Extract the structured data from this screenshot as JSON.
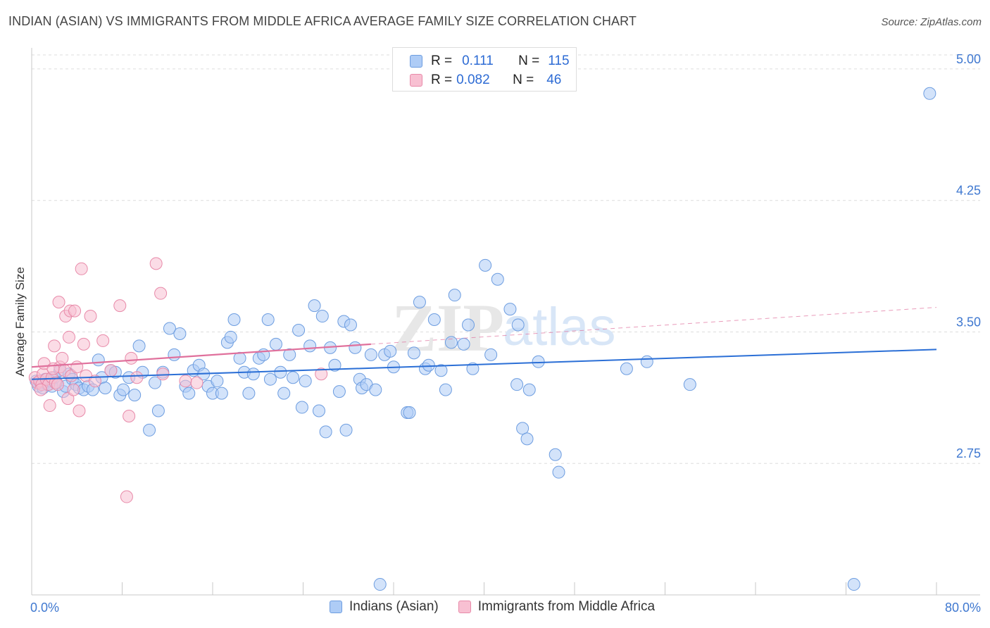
{
  "header": {
    "title": "INDIAN (ASIAN) VS IMMIGRANTS FROM MIDDLE AFRICA AVERAGE FAMILY SIZE CORRELATION CHART",
    "source": "Source: ZipAtlas.com"
  },
  "watermark": {
    "zip": "ZIP",
    "atlas": "atlas"
  },
  "stat_legend": {
    "rows": [
      {
        "r_label": "R =",
        "r_value": "0.111",
        "n_label": "N =",
        "n_value": "115"
      },
      {
        "r_label": "R =",
        "r_value": "0.082",
        "n_label": "N =",
        "n_value": "46"
      }
    ]
  },
  "bottom_legend": {
    "items": [
      "Indians (Asian)",
      "Immigrants from Middle Africa"
    ]
  },
  "chart_data": {
    "type": "scatter",
    "title": "INDIAN (ASIAN) VS IMMIGRANTS FROM MIDDLE AFRICA AVERAGE FAMILY SIZE CORRELATION CHART",
    "xlabel": "",
    "ylabel": "Average Family Size",
    "xlim": [
      0,
      80
    ],
    "ylim": [
      2.0,
      5.08
    ],
    "x_tick_labels": [
      "0.0%",
      "80.0%"
    ],
    "y_ticks": [
      2.75,
      3.5,
      4.25,
      5.0
    ],
    "y_tick_labels": [
      "2.75",
      "3.50",
      "4.25",
      "5.00"
    ],
    "grid": "horizontal dashed",
    "legend_position": "top-center",
    "colors": {
      "blue_fill": "#aeccf6",
      "blue_stroke": "#6d9de0",
      "blue_line": "#2b6fd6",
      "pink_fill": "#f8c0d2",
      "pink_stroke": "#e88aa9",
      "pink_line": "#e0709c",
      "axis_text": "#3f78d0"
    },
    "series": [
      {
        "name": "Indians (Asian)",
        "color": "#aeccf6",
        "r": 0.111,
        "n": 115,
        "trend": {
          "x0": 0,
          "y0": 3.23,
          "x1": 80,
          "y1": 3.4,
          "style": "solid"
        },
        "points": [
          [
            0.4,
            3.22
          ],
          [
            0.6,
            3.19
          ],
          [
            0.8,
            3.21
          ],
          [
            1.0,
            3.18
          ],
          [
            1.2,
            3.23
          ],
          [
            1.4,
            3.2
          ],
          [
            1.6,
            3.22
          ],
          [
            1.8,
            3.19
          ],
          [
            2.0,
            3.24
          ],
          [
            2.2,
            3.21
          ],
          [
            2.5,
            3.28
          ],
          [
            2.8,
            3.16
          ],
          [
            3.0,
            3.19
          ],
          [
            3.3,
            3.26
          ],
          [
            3.6,
            3.23
          ],
          [
            3.9,
            3.2
          ],
          [
            4.2,
            3.18
          ],
          [
            4.6,
            3.17
          ],
          [
            5.0,
            3.19
          ],
          [
            5.4,
            3.17
          ],
          [
            5.9,
            3.34
          ],
          [
            6.2,
            3.24
          ],
          [
            6.5,
            3.18
          ],
          [
            7.0,
            3.28
          ],
          [
            7.4,
            3.27
          ],
          [
            7.8,
            3.14
          ],
          [
            8.1,
            3.17
          ],
          [
            8.6,
            3.24
          ],
          [
            9.1,
            3.14
          ],
          [
            9.5,
            3.42
          ],
          [
            9.8,
            3.27
          ],
          [
            10.4,
            2.94
          ],
          [
            10.9,
            3.21
          ],
          [
            11.2,
            3.05
          ],
          [
            11.6,
            3.27
          ],
          [
            12.2,
            3.52
          ],
          [
            12.6,
            3.37
          ],
          [
            13.1,
            3.49
          ],
          [
            13.6,
            3.19
          ],
          [
            13.9,
            3.15
          ],
          [
            14.3,
            3.28
          ],
          [
            14.8,
            3.31
          ],
          [
            15.2,
            3.26
          ],
          [
            15.6,
            3.19
          ],
          [
            16.0,
            3.15
          ],
          [
            16.4,
            3.22
          ],
          [
            16.8,
            3.15
          ],
          [
            17.3,
            3.44
          ],
          [
            17.6,
            3.47
          ],
          [
            17.9,
            3.57
          ],
          [
            18.4,
            3.35
          ],
          [
            18.8,
            3.27
          ],
          [
            19.2,
            3.15
          ],
          [
            19.6,
            3.26
          ],
          [
            20.1,
            3.35
          ],
          [
            20.5,
            3.37
          ],
          [
            20.9,
            3.57
          ],
          [
            21.1,
            3.23
          ],
          [
            21.6,
            3.43
          ],
          [
            22.0,
            3.27
          ],
          [
            22.3,
            3.15
          ],
          [
            22.8,
            3.37
          ],
          [
            23.1,
            3.24
          ],
          [
            23.6,
            3.51
          ],
          [
            23.9,
            3.07
          ],
          [
            24.2,
            3.22
          ],
          [
            24.6,
            3.42
          ],
          [
            25.0,
            3.65
          ],
          [
            25.4,
            3.05
          ],
          [
            25.7,
            3.59
          ],
          [
            26.0,
            2.93
          ],
          [
            26.4,
            3.41
          ],
          [
            26.8,
            3.31
          ],
          [
            27.2,
            3.16
          ],
          [
            27.6,
            3.56
          ],
          [
            27.8,
            2.94
          ],
          [
            28.2,
            3.54
          ],
          [
            28.6,
            3.41
          ],
          [
            29.0,
            3.23
          ],
          [
            29.2,
            3.18
          ],
          [
            29.6,
            3.2
          ],
          [
            30.0,
            3.37
          ],
          [
            30.4,
            3.17
          ],
          [
            30.8,
            2.06
          ],
          [
            31.2,
            3.37
          ],
          [
            31.7,
            3.39
          ],
          [
            32.0,
            3.3
          ],
          [
            33.2,
            3.04
          ],
          [
            33.4,
            3.04
          ],
          [
            33.8,
            3.38
          ],
          [
            34.3,
            3.67
          ],
          [
            34.8,
            3.29
          ],
          [
            35.1,
            3.31
          ],
          [
            35.6,
            3.57
          ],
          [
            36.2,
            3.28
          ],
          [
            36.6,
            3.17
          ],
          [
            37.1,
            3.44
          ],
          [
            37.4,
            3.71
          ],
          [
            38.2,
            3.43
          ],
          [
            38.6,
            3.54
          ],
          [
            39.0,
            3.29
          ],
          [
            40.1,
            3.88
          ],
          [
            40.6,
            3.37
          ],
          [
            41.2,
            3.8
          ],
          [
            42.3,
            3.63
          ],
          [
            43.0,
            3.54
          ],
          [
            43.4,
            2.95
          ],
          [
            43.8,
            2.89
          ],
          [
            44.0,
            3.17
          ],
          [
            44.8,
            3.33
          ],
          [
            46.3,
            2.8
          ],
          [
            46.6,
            2.7
          ],
          [
            52.6,
            3.29
          ],
          [
            54.4,
            3.33
          ],
          [
            58.2,
            3.2
          ],
          [
            79.4,
            4.86
          ],
          [
            72.7,
            2.06
          ],
          [
            42.9,
            3.2
          ]
        ]
      },
      {
        "name": "Immigrants from Middle Africa",
        "color": "#f8c0d2",
        "r": 0.082,
        "n": 46,
        "trend": {
          "x0": 0,
          "y0": 3.3,
          "x1": 30,
          "y1": 3.43,
          "x_dash_end": 80,
          "y_dash_end": 3.64,
          "style": "solid-then-dashed"
        },
        "points": [
          [
            0.3,
            3.24
          ],
          [
            0.5,
            3.21
          ],
          [
            0.7,
            3.22
          ],
          [
            0.9,
            3.2
          ],
          [
            1.0,
            3.26
          ],
          [
            1.1,
            3.32
          ],
          [
            1.3,
            3.23
          ],
          [
            1.5,
            3.2
          ],
          [
            1.6,
            3.08
          ],
          [
            1.8,
            3.24
          ],
          [
            2.0,
            3.42
          ],
          [
            2.1,
            3.21
          ],
          [
            2.3,
            3.2
          ],
          [
            2.5,
            3.3
          ],
          [
            2.7,
            3.35
          ],
          [
            2.9,
            3.28
          ],
          [
            3.0,
            3.59
          ],
          [
            3.2,
            3.12
          ],
          [
            3.3,
            3.47
          ],
          [
            3.4,
            3.62
          ],
          [
            3.5,
            3.25
          ],
          [
            3.7,
            3.17
          ],
          [
            3.8,
            3.62
          ],
          [
            4.0,
            3.3
          ],
          [
            4.2,
            3.05
          ],
          [
            4.4,
            3.86
          ],
          [
            4.6,
            3.43
          ],
          [
            4.8,
            3.25
          ],
          [
            5.2,
            3.59
          ],
          [
            5.6,
            3.22
          ],
          [
            6.3,
            3.45
          ],
          [
            7.0,
            3.28
          ],
          [
            7.8,
            3.65
          ],
          [
            8.4,
            2.56
          ],
          [
            8.6,
            3.02
          ],
          [
            8.8,
            3.35
          ],
          [
            9.3,
            3.24
          ],
          [
            11.0,
            3.89
          ],
          [
            11.4,
            3.72
          ],
          [
            11.6,
            3.26
          ],
          [
            13.6,
            3.22
          ],
          [
            14.6,
            3.21
          ],
          [
            25.6,
            3.26
          ],
          [
            1.9,
            3.29
          ],
          [
            2.4,
            3.67
          ],
          [
            0.8,
            3.17
          ]
        ]
      }
    ]
  }
}
